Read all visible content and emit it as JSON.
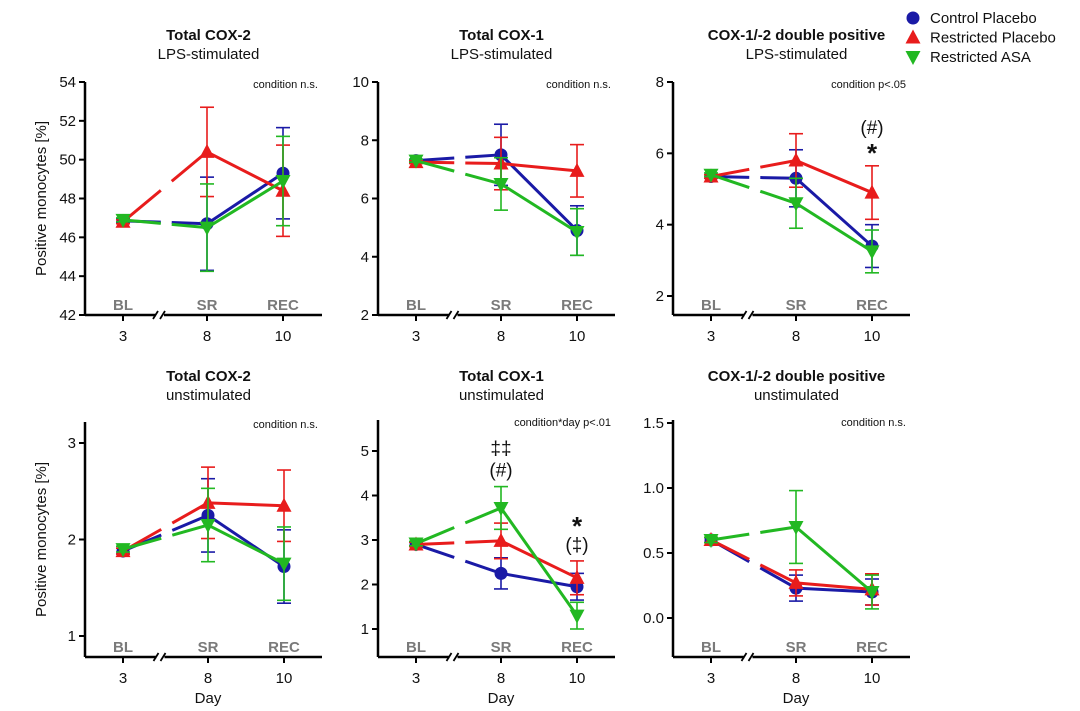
{
  "legend": [
    {
      "name": "Control Placebo",
      "color": "#1a1aa6",
      "marker": "circle"
    },
    {
      "name": "Restricted Placebo",
      "color": "#e81c1c",
      "marker": "triangle-up"
    },
    {
      "name": "Restricted ASA",
      "color": "#22b822",
      "marker": "triangle-down"
    }
  ],
  "ylabel": "Positive monocytes [%]",
  "xlabel": "Day",
  "phase_labels": [
    "BL",
    "SR",
    "REC"
  ],
  "chart_data": [
    {
      "type": "line",
      "title": "Total COX-2",
      "subtitle": "LPS-stimulated",
      "stat": "condition n.s.",
      "x": [
        3,
        8,
        10
      ],
      "yticks": [
        42,
        44,
        46,
        48,
        50,
        52,
        54
      ],
      "ylim": [
        42,
        54
      ],
      "series": [
        {
          "name": "Control Placebo",
          "values": [
            46.85,
            46.7,
            49.3
          ],
          "err": [
            0.1,
            2.4,
            2.35
          ]
        },
        {
          "name": "Restricted Placebo",
          "values": [
            46.8,
            50.4,
            48.4
          ],
          "err": [
            0.1,
            2.3,
            2.35
          ]
        },
        {
          "name": "Restricted ASA",
          "values": [
            46.9,
            46.5,
            48.9
          ],
          "err": [
            0.1,
            2.25,
            2.3
          ]
        }
      ],
      "annotations": []
    },
    {
      "type": "line",
      "title": "Total COX-1",
      "subtitle": "LPS-stimulated",
      "stat": "condition n.s.",
      "x": [
        3,
        8,
        10
      ],
      "yticks": [
        2,
        4,
        6,
        8,
        10
      ],
      "ylim": [
        2,
        10
      ],
      "series": [
        {
          "name": "Control Placebo",
          "values": [
            7.3,
            7.5,
            4.9
          ],
          "err": [
            0.05,
            1.05,
            0.85
          ]
        },
        {
          "name": "Restricted Placebo",
          "values": [
            7.25,
            7.2,
            6.95
          ],
          "err": [
            0.05,
            0.9,
            0.9
          ]
        },
        {
          "name": "Restricted ASA",
          "values": [
            7.3,
            6.5,
            4.85
          ],
          "err": [
            0.05,
            0.9,
            0.8
          ]
        }
      ],
      "annotations": []
    },
    {
      "type": "line",
      "title": "COX-1/-2 double positive",
      "subtitle": "LPS-stimulated",
      "stat": "condition p<.05",
      "x": [
        3,
        8,
        10
      ],
      "yticks": [
        2,
        4,
        6,
        8
      ],
      "ylim": [
        1.5,
        8
      ],
      "series": [
        {
          "name": "Control Placebo",
          "values": [
            5.35,
            5.3,
            3.4
          ],
          "err": [
            0.05,
            0.8,
            0.6
          ]
        },
        {
          "name": "Restricted Placebo",
          "values": [
            5.35,
            5.8,
            4.9
          ],
          "err": [
            0.05,
            0.75,
            0.75
          ]
        },
        {
          "name": "Restricted ASA",
          "values": [
            5.4,
            4.6,
            3.25
          ],
          "err": [
            0.05,
            0.7,
            0.6
          ]
        }
      ],
      "annotations": [
        {
          "x": 10,
          "lines": [
            "(#)",
            "*"
          ]
        }
      ]
    },
    {
      "type": "line",
      "title": "Total COX-2",
      "subtitle": "unstimulated",
      "stat": "condition n.s.",
      "x": [
        3,
        8,
        10
      ],
      "yticks": [
        1,
        2,
        3
      ],
      "ylim": [
        0.8,
        3.25
      ],
      "series": [
        {
          "name": "Control Placebo",
          "values": [
            1.88,
            2.25,
            1.72
          ],
          "err": [
            0.03,
            0.38,
            0.38
          ]
        },
        {
          "name": "Restricted Placebo",
          "values": [
            1.88,
            2.38,
            2.35
          ],
          "err": [
            0.03,
            0.37,
            0.37
          ]
        },
        {
          "name": "Restricted ASA",
          "values": [
            1.9,
            2.15,
            1.75
          ],
          "err": [
            0.03,
            0.38,
            0.38
          ]
        }
      ],
      "annotations": []
    },
    {
      "type": "line",
      "title": "Total COX-1",
      "subtitle": "unstimulated",
      "stat": "condition*day p<.01",
      "x": [
        3,
        8,
        10
      ],
      "yticks": [
        1,
        2,
        3,
        4,
        5
      ],
      "ylim": [
        0.4,
        5.7
      ],
      "series": [
        {
          "name": "Control Placebo",
          "values": [
            2.9,
            2.25,
            1.95
          ],
          "err": [
            0.05,
            0.35,
            0.3
          ]
        },
        {
          "name": "Restricted Placebo",
          "values": [
            2.9,
            2.98,
            2.15
          ],
          "err": [
            0.05,
            0.4,
            0.38
          ]
        },
        {
          "name": "Restricted ASA",
          "values": [
            2.92,
            3.72,
            1.3
          ],
          "err": [
            0.05,
            0.48,
            0.3
          ]
        }
      ],
      "annotations": [
        {
          "x": 8,
          "lines": [
            "‡‡",
            "(#)"
          ]
        },
        {
          "x": 10,
          "lines": [
            "*",
            "(‡)"
          ]
        }
      ]
    },
    {
      "type": "line",
      "title": "COX-1/-2 double positive",
      "subtitle": "unstimulated",
      "stat": "condition n.s.",
      "x": [
        3,
        8,
        10
      ],
      "yticks": [
        0.0,
        0.5,
        1.0,
        1.5
      ],
      "ytick_labels": [
        "0.0",
        "0.5",
        "1.0",
        "1.5"
      ],
      "ylim": [
        -0.3,
        1.5
      ],
      "series": [
        {
          "name": "Control Placebo",
          "values": [
            0.6,
            0.23,
            0.2
          ],
          "err": [
            0.02,
            0.1,
            0.1
          ]
        },
        {
          "name": "Restricted Placebo",
          "values": [
            0.6,
            0.27,
            0.22
          ],
          "err": [
            0.02,
            0.1,
            0.12
          ]
        },
        {
          "name": "Restricted ASA",
          "values": [
            0.6,
            0.7,
            0.2
          ],
          "err": [
            0.02,
            0.28,
            0.13
          ]
        }
      ],
      "annotations": []
    }
  ]
}
